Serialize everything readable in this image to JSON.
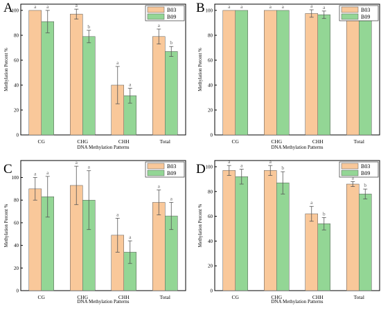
{
  "colors": {
    "bar_b03": "#f9c89a",
    "bar_b09": "#93d695",
    "axis": "#000000",
    "letters": "#666666"
  },
  "chart_data": [
    {
      "type": "bar",
      "panel_label": "A",
      "categories": [
        "CG",
        "CHG",
        "CHH",
        "Total"
      ],
      "xlabel": "DNA Methylation Patterns",
      "ylabel": "Methylation Percent %",
      "ylim": [
        0,
        105
      ],
      "yticks": [
        0,
        20,
        40,
        60,
        80,
        100
      ],
      "legend_position": "top-right",
      "series": [
        {
          "name": "B03",
          "values": [
            100,
            97,
            40,
            79
          ],
          "errors": [
            0,
            4,
            15,
            6
          ],
          "letters": [
            "a",
            "a",
            "a",
            "a"
          ]
        },
        {
          "name": "B09",
          "values": [
            91,
            79,
            31.5,
            67
          ],
          "errors": [
            9,
            5,
            6,
            4
          ],
          "letters": [
            "a",
            "b",
            "a",
            "b"
          ]
        }
      ]
    },
    {
      "type": "bar",
      "panel_label": "B",
      "categories": [
        "CG",
        "CHG",
        "CHH",
        "Total"
      ],
      "xlabel": "DNA Methylation Patterns",
      "ylabel": "Methylation Percent %",
      "ylim": [
        0,
        105
      ],
      "yticks": [
        0,
        20,
        40,
        60,
        80,
        100
      ],
      "legend_position": "top-right",
      "series": [
        {
          "name": "B03",
          "values": [
            100,
            100,
            97.5,
            99
          ],
          "errors": [
            0,
            0,
            3,
            1
          ],
          "letters": [
            "a",
            "a",
            "a",
            "a"
          ]
        },
        {
          "name": "B09",
          "values": [
            100,
            100,
            96.5,
            98.5
          ],
          "errors": [
            0,
            0,
            3,
            1.5
          ],
          "letters": [
            "a",
            "a",
            "a",
            "a"
          ]
        }
      ]
    },
    {
      "type": "bar",
      "panel_label": "C",
      "categories": [
        "CG",
        "CHG",
        "CHH",
        "Total"
      ],
      "xlabel": "DNA Methylation Patterns",
      "ylabel": "Methylation Percent %",
      "ylim": [
        0,
        115
      ],
      "yticks": [
        0,
        20,
        40,
        60,
        80,
        100
      ],
      "legend_position": "top-right",
      "series": [
        {
          "name": "B03",
          "values": [
            90,
            93,
            49,
            78
          ],
          "errors": [
            10,
            17,
            15,
            11
          ],
          "letters": [
            "a",
            "a",
            "a",
            "a"
          ]
        },
        {
          "name": "B09",
          "values": [
            83,
            80,
            34,
            66
          ],
          "errors": [
            18,
            26,
            10,
            12
          ],
          "letters": [
            "a",
            "a",
            "a",
            "a"
          ]
        }
      ]
    },
    {
      "type": "bar",
      "panel_label": "D",
      "categories": [
        "CG",
        "CHG",
        "CHH",
        "Total"
      ],
      "xlabel": "DNA Methylation Patterns",
      "ylabel": "Methylation Percent %",
      "ylim": [
        0,
        105
      ],
      "yticks": [
        0,
        20,
        40,
        60,
        80,
        100
      ],
      "legend_position": "top-right",
      "series": [
        {
          "name": "B03",
          "values": [
            97,
            97,
            62,
            86
          ],
          "errors": [
            4,
            4,
            6,
            2
          ],
          "letters": [
            "a",
            "a",
            "a",
            "a"
          ]
        },
        {
          "name": "B09",
          "values": [
            92,
            87,
            54,
            78
          ],
          "errors": [
            6,
            9,
            5,
            4
          ],
          "letters": [
            "a",
            "b",
            "b",
            "b"
          ]
        }
      ]
    }
  ]
}
